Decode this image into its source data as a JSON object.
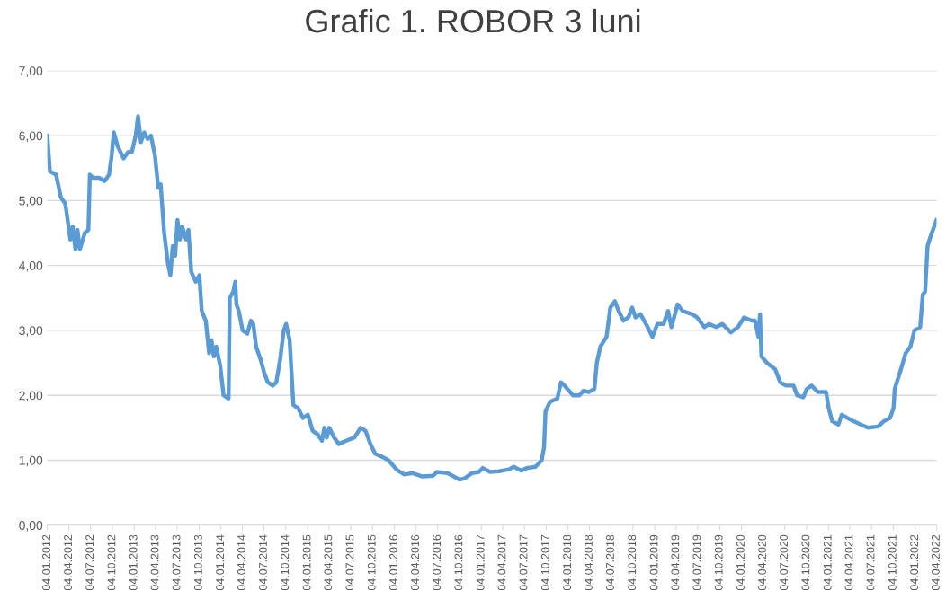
{
  "chart_data": {
    "type": "line",
    "title": "Grafic 1. ROBOR 3 luni",
    "x": [
      "2012-01-04",
      "2012-01-15",
      "2012-02-10",
      "2012-03-01",
      "2012-03-20",
      "2012-04-10",
      "2012-04-20",
      "2012-05-01",
      "2012-05-10",
      "2012-05-20",
      "2012-06-10",
      "2012-06-25",
      "2012-07-01",
      "2012-07-15",
      "2012-08-10",
      "2012-09-01",
      "2012-09-20",
      "2012-10-01",
      "2012-10-10",
      "2012-10-25",
      "2012-11-20",
      "2012-12-10",
      "2012-12-25",
      "2013-01-10",
      "2013-01-20",
      "2013-02-01",
      "2013-02-15",
      "2013-03-01",
      "2013-03-15",
      "2013-04-01",
      "2013-04-15",
      "2013-04-25",
      "2013-05-10",
      "2013-05-25",
      "2013-06-05",
      "2013-06-15",
      "2013-06-25",
      "2013-07-05",
      "2013-07-15",
      "2013-07-25",
      "2013-08-10",
      "2013-08-20",
      "2013-09-01",
      "2013-09-20",
      "2013-10-05",
      "2013-10-15",
      "2013-11-01",
      "2013-11-15",
      "2013-11-25",
      "2013-12-05",
      "2013-12-15",
      "2014-01-01",
      "2014-01-15",
      "2014-02-05",
      "2014-02-10",
      "2014-02-25",
      "2014-03-05",
      "2014-03-10",
      "2014-03-20",
      "2014-04-05",
      "2014-04-25",
      "2014-05-10",
      "2014-05-20",
      "2014-06-01",
      "2014-06-20",
      "2014-07-05",
      "2014-07-20",
      "2014-08-10",
      "2014-08-25",
      "2014-09-10",
      "2014-09-25",
      "2014-10-05",
      "2014-10-20",
      "2014-11-05",
      "2014-11-25",
      "2014-12-15",
      "2015-01-05",
      "2015-01-25",
      "2015-02-15",
      "2015-03-05",
      "2015-03-15",
      "2015-03-25",
      "2015-04-05",
      "2015-04-25",
      "2015-05-15",
      "2015-06-15",
      "2015-07-20",
      "2015-08-15",
      "2015-09-05",
      "2015-09-25",
      "2015-10-15",
      "2015-11-15",
      "2015-12-10",
      "2016-01-15",
      "2016-02-15",
      "2016-03-20",
      "2016-05-01",
      "2016-06-15",
      "2016-07-01",
      "2016-08-15",
      "2016-09-10",
      "2016-10-05",
      "2016-10-25",
      "2016-11-25",
      "2016-12-25",
      "2017-01-10",
      "2017-02-10",
      "2017-03-20",
      "2017-05-01",
      "2017-05-20",
      "2017-06-20",
      "2017-07-15",
      "2017-08-20",
      "2017-09-15",
      "2017-09-25",
      "2017-10-01",
      "2017-10-20",
      "2017-11-20",
      "2017-12-05",
      "2017-12-20",
      "2018-01-25",
      "2018-02-20",
      "2018-03-10",
      "2018-04-01",
      "2018-04-25",
      "2018-05-05",
      "2018-05-20",
      "2018-06-15",
      "2018-07-01",
      "2018-07-20",
      "2018-08-05",
      "2018-08-25",
      "2018-09-15",
      "2018-10-01",
      "2018-10-15",
      "2018-11-05",
      "2018-12-05",
      "2018-12-25",
      "2019-01-15",
      "2019-02-10",
      "2019-03-01",
      "2019-03-15",
      "2019-04-10",
      "2019-05-01",
      "2019-06-10",
      "2019-07-01",
      "2019-08-01",
      "2019-08-20",
      "2019-09-20",
      "2019-10-15",
      "2019-11-20",
      "2019-12-20",
      "2020-01-15",
      "2020-02-15",
      "2020-03-01",
      "2020-03-15",
      "2020-03-22",
      "2020-03-28",
      "2020-04-20",
      "2020-05-25",
      "2020-06-15",
      "2020-07-10",
      "2020-08-10",
      "2020-08-25",
      "2020-09-20",
      "2020-10-05",
      "2020-10-25",
      "2020-11-20",
      "2020-12-25",
      "2021-01-05",
      "2021-01-20",
      "2021-02-15",
      "2021-03-01",
      "2021-03-25",
      "2021-04-20",
      "2021-05-20",
      "2021-06-20",
      "2021-08-01",
      "2021-08-25",
      "2021-09-20",
      "2021-10-05",
      "2021-10-10",
      "2021-11-05",
      "2021-11-25",
      "2021-12-15",
      "2022-01-01",
      "2022-01-25",
      "2022-02-05",
      "2022-02-15",
      "2022-02-25",
      "2022-03-10",
      "2022-03-25",
      "2022-04-04"
    ],
    "series": [
      {
        "color": "#5b9bd5",
        "values": [
          6.0,
          5.45,
          5.4,
          5.05,
          4.95,
          4.4,
          4.6,
          4.25,
          4.55,
          4.25,
          4.5,
          4.55,
          5.4,
          5.35,
          5.35,
          5.3,
          5.4,
          5.7,
          6.05,
          5.85,
          5.65,
          5.75,
          5.75,
          6.0,
          6.3,
          5.9,
          6.05,
          5.95,
          6.0,
          5.7,
          5.2,
          5.25,
          4.5,
          4.05,
          3.85,
          4.3,
          4.15,
          4.7,
          4.4,
          4.6,
          4.4,
          4.55,
          3.9,
          3.75,
          3.85,
          3.3,
          3.15,
          2.65,
          2.85,
          2.6,
          2.75,
          2.45,
          2.0,
          1.95,
          3.5,
          3.6,
          3.75,
          3.4,
          3.3,
          3.0,
          2.95,
          3.15,
          3.1,
          2.75,
          2.55,
          2.35,
          2.2,
          2.15,
          2.2,
          2.55,
          3.0,
          3.1,
          2.85,
          1.85,
          1.8,
          1.65,
          1.7,
          1.45,
          1.4,
          1.3,
          1.5,
          1.35,
          1.5,
          1.35,
          1.25,
          1.3,
          1.35,
          1.5,
          1.45,
          1.25,
          1.1,
          1.05,
          1.0,
          0.85,
          0.78,
          0.8,
          0.75,
          0.76,
          0.82,
          0.8,
          0.75,
          0.7,
          0.72,
          0.8,
          0.82,
          0.88,
          0.82,
          0.83,
          0.86,
          0.9,
          0.84,
          0.88,
          0.9,
          1.0,
          1.2,
          1.75,
          1.9,
          1.95,
          2.2,
          2.15,
          2.0,
          2.0,
          2.07,
          2.05,
          2.1,
          2.5,
          2.75,
          2.9,
          3.35,
          3.45,
          3.3,
          3.15,
          3.2,
          3.35,
          3.2,
          3.25,
          3.05,
          2.9,
          3.1,
          3.1,
          3.3,
          3.05,
          3.4,
          3.3,
          3.25,
          3.2,
          3.05,
          3.1,
          3.05,
          3.1,
          2.97,
          3.05,
          3.2,
          3.15,
          3.15,
          2.9,
          3.25,
          2.6,
          2.5,
          2.4,
          2.2,
          2.15,
          2.15,
          2.0,
          1.97,
          2.1,
          2.15,
          2.05,
          2.05,
          1.8,
          1.6,
          1.55,
          1.7,
          1.65,
          1.6,
          1.55,
          1.5,
          1.52,
          1.6,
          1.65,
          1.8,
          2.1,
          2.4,
          2.65,
          2.75,
          3.0,
          3.05,
          3.55,
          3.6,
          4.3,
          4.45,
          4.6,
          4.7
        ]
      }
    ],
    "xlim": [
      "2012-01-04",
      "2022-04-04"
    ],
    "xticks": [
      {
        "value": "2012-01-04",
        "label": "04.01.2012"
      },
      {
        "value": "2012-04-04",
        "label": "04.04.2012"
      },
      {
        "value": "2012-07-04",
        "label": "04.07.2012"
      },
      {
        "value": "2012-10-04",
        "label": "04.10.2012"
      },
      {
        "value": "2013-01-04",
        "label": "04.01.2013"
      },
      {
        "value": "2013-04-04",
        "label": "04.04.2013"
      },
      {
        "value": "2013-07-04",
        "label": "04.07.2013"
      },
      {
        "value": "2013-10-04",
        "label": "04.10.2013"
      },
      {
        "value": "2014-01-04",
        "label": "04.01.2014"
      },
      {
        "value": "2014-04-04",
        "label": "04.04.2014"
      },
      {
        "value": "2014-07-04",
        "label": "04.07.2014"
      },
      {
        "value": "2014-10-04",
        "label": "04.10.2014"
      },
      {
        "value": "2015-01-04",
        "label": "04.01.2015"
      },
      {
        "value": "2015-04-04",
        "label": "04.04.2015"
      },
      {
        "value": "2015-07-04",
        "label": "04.07.2015"
      },
      {
        "value": "2015-10-04",
        "label": "04.10.2015"
      },
      {
        "value": "2016-01-04",
        "label": "04.01.2016"
      },
      {
        "value": "2016-04-04",
        "label": "04.04.2016"
      },
      {
        "value": "2016-07-04",
        "label": "04.07.2016"
      },
      {
        "value": "2016-10-04",
        "label": "04.10.2016"
      },
      {
        "value": "2017-01-04",
        "label": "04.01.2017"
      },
      {
        "value": "2017-04-04",
        "label": "04.04.2017"
      },
      {
        "value": "2017-07-04",
        "label": "04.07.2017"
      },
      {
        "value": "2017-10-04",
        "label": "04.10.2017"
      },
      {
        "value": "2018-01-04",
        "label": "04.01.2018"
      },
      {
        "value": "2018-04-04",
        "label": "04.04.2018"
      },
      {
        "value": "2018-07-04",
        "label": "04.07.2018"
      },
      {
        "value": "2018-10-04",
        "label": "04.10.2018"
      },
      {
        "value": "2019-01-04",
        "label": "04.01.2019"
      },
      {
        "value": "2019-04-04",
        "label": "04.04.2019"
      },
      {
        "value": "2019-07-04",
        "label": "04.07.2019"
      },
      {
        "value": "2019-10-04",
        "label": "04.10.2019"
      },
      {
        "value": "2020-01-04",
        "label": "04.01.2020"
      },
      {
        "value": "2020-04-04",
        "label": "04.04.2020"
      },
      {
        "value": "2020-07-04",
        "label": "04.07.2020"
      },
      {
        "value": "2020-10-04",
        "label": "04.10.2020"
      },
      {
        "value": "2021-01-04",
        "label": "04.01.2021"
      },
      {
        "value": "2021-04-04",
        "label": "04.04.2021"
      },
      {
        "value": "2021-07-04",
        "label": "04.07.2021"
      },
      {
        "value": "2021-10-04",
        "label": "04.10.2021"
      },
      {
        "value": "2022-01-04",
        "label": "04.01.2022"
      },
      {
        "value": "2022-04-04",
        "label": "04.04.2022"
      }
    ],
    "ylim": [
      0,
      7
    ],
    "yticks": [
      {
        "value": 0,
        "label": "0,00"
      },
      {
        "value": 1,
        "label": "1,00"
      },
      {
        "value": 2,
        "label": "2,00"
      },
      {
        "value": 3,
        "label": "3,00"
      },
      {
        "value": 4,
        "label": "4,00"
      },
      {
        "value": 5,
        "label": "5,00"
      },
      {
        "value": 6,
        "label": "6,00"
      },
      {
        "value": 7,
        "label": "7,00"
      }
    ],
    "grid": "y",
    "legend": false,
    "marker": "none",
    "line_style": "solid"
  }
}
